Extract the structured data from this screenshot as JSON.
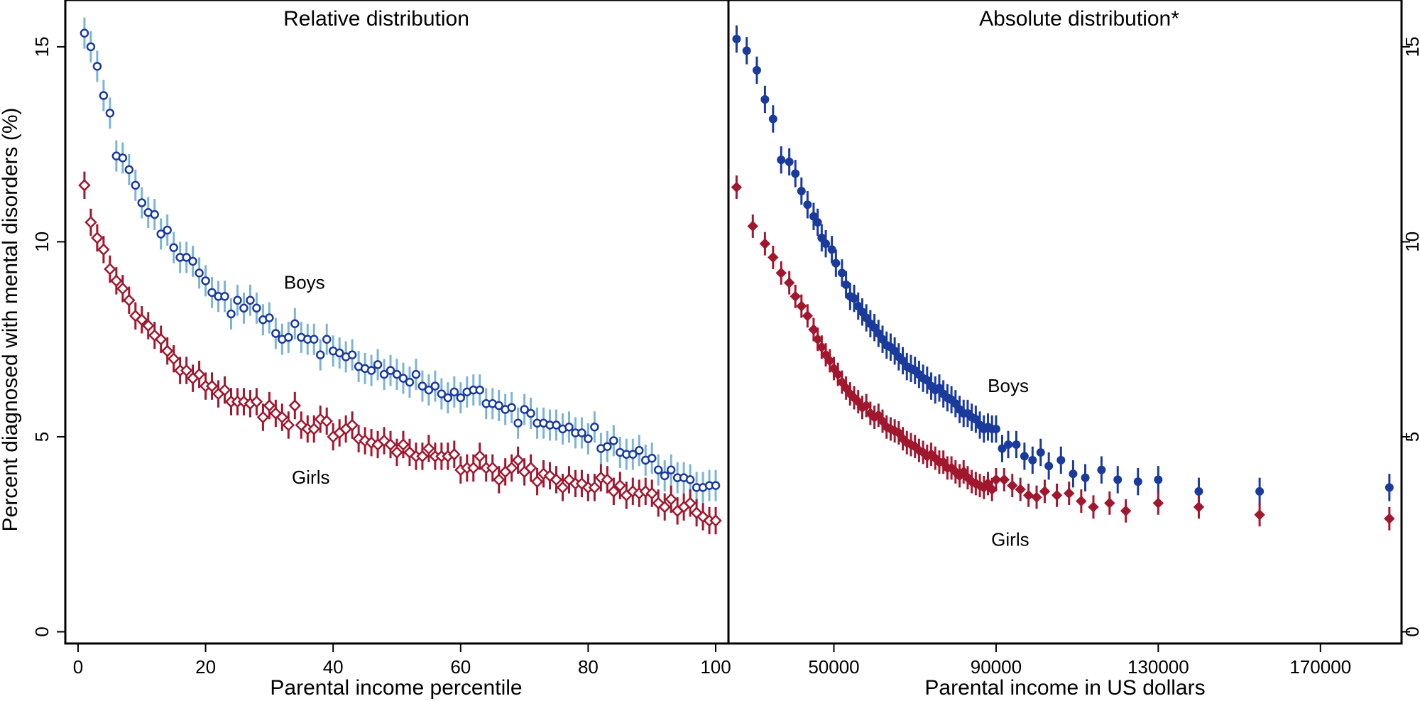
{
  "chart_data": [
    {
      "type": "scatter",
      "title": "Relative distribution",
      "xlabel": "Parental income percentile",
      "ylabel": "Percent diagnosed with mental disorders (%)",
      "xlim": [
        -2,
        102
      ],
      "ylim": [
        -0.3,
        16.2
      ],
      "xticks": [
        0,
        20,
        40,
        60,
        80,
        100
      ],
      "xtick_labels": [
        "0",
        "20",
        "40",
        "60",
        "80",
        "100"
      ],
      "yticks": [
        0,
        5,
        10,
        15
      ],
      "ytick_labels": [
        "0",
        "5",
        "10",
        "15"
      ],
      "grid": false,
      "legend": "none",
      "annotations": [
        {
          "text": "Boys",
          "x": 35.5,
          "y": 8.8
        },
        {
          "text": "Girls",
          "x": 36.5,
          "y": 3.8
        }
      ],
      "series": [
        {
          "name": "Boys",
          "marker": "circle-hollow",
          "color": "#1a3a9c",
          "errorbar_color": "#7bb4d6",
          "ci_halfwidth": 0.4,
          "x": [
            1,
            2,
            3,
            4,
            5,
            6,
            7,
            8,
            9,
            10,
            11,
            12,
            13,
            14,
            15,
            16,
            17,
            18,
            19,
            20,
            21,
            22,
            23,
            24,
            25,
            26,
            27,
            28,
            29,
            30,
            31,
            32,
            33,
            34,
            35,
            36,
            37,
            38,
            39,
            40,
            41,
            42,
            43,
            44,
            45,
            46,
            47,
            48,
            49,
            50,
            51,
            52,
            53,
            54,
            55,
            56,
            57,
            58,
            59,
            60,
            61,
            62,
            63,
            64,
            65,
            66,
            67,
            68,
            69,
            70,
            71,
            72,
            73,
            74,
            75,
            76,
            77,
            78,
            79,
            80,
            81,
            82,
            83,
            84,
            85,
            86,
            87,
            88,
            89,
            90,
            91,
            92,
            93,
            94,
            95,
            96,
            97,
            98,
            99,
            100
          ],
          "y": [
            15.35,
            15.0,
            14.5,
            13.75,
            13.3,
            12.2,
            12.15,
            11.85,
            11.45,
            11.0,
            10.75,
            10.7,
            10.2,
            10.3,
            9.85,
            9.6,
            9.6,
            9.5,
            9.2,
            9.0,
            8.7,
            8.6,
            8.6,
            8.15,
            8.5,
            8.3,
            8.5,
            8.3,
            8.0,
            8.05,
            7.65,
            7.5,
            7.55,
            7.9,
            7.55,
            7.5,
            7.5,
            7.1,
            7.5,
            7.2,
            7.15,
            7.05,
            7.1,
            6.8,
            6.75,
            6.7,
            6.85,
            6.6,
            6.7,
            6.6,
            6.5,
            6.4,
            6.6,
            6.3,
            6.2,
            6.3,
            6.1,
            6.0,
            6.15,
            6.0,
            6.15,
            6.2,
            6.2,
            5.85,
            5.85,
            5.8,
            5.7,
            5.75,
            5.35,
            5.7,
            5.6,
            5.35,
            5.35,
            5.3,
            5.3,
            5.2,
            5.25,
            5.1,
            5.1,
            4.95,
            5.25,
            4.7,
            4.75,
            4.9,
            4.6,
            4.55,
            4.55,
            4.65,
            4.4,
            4.45,
            4.15,
            4.0,
            4.15,
            3.95,
            3.95,
            3.9,
            3.7,
            3.7,
            3.75,
            3.75
          ]
        },
        {
          "name": "Girls",
          "marker": "diamond-hollow",
          "color": "#a0172e",
          "errorbar_color": "#a0172e",
          "ci_halfwidth": 0.35,
          "x": [
            1,
            2,
            3,
            4,
            5,
            6,
            7,
            8,
            9,
            10,
            11,
            12,
            13,
            14,
            15,
            16,
            17,
            18,
            19,
            20,
            21,
            22,
            23,
            24,
            25,
            26,
            27,
            28,
            29,
            30,
            31,
            32,
            33,
            34,
            35,
            36,
            37,
            38,
            39,
            40,
            41,
            42,
            43,
            44,
            45,
            46,
            47,
            48,
            49,
            50,
            51,
            52,
            53,
            54,
            55,
            56,
            57,
            58,
            59,
            60,
            61,
            62,
            63,
            64,
            65,
            66,
            67,
            68,
            69,
            70,
            71,
            72,
            73,
            74,
            75,
            76,
            77,
            78,
            79,
            80,
            81,
            82,
            83,
            84,
            85,
            86,
            87,
            88,
            89,
            90,
            91,
            92,
            93,
            94,
            95,
            96,
            97,
            98,
            99,
            100
          ],
          "y": [
            11.45,
            10.5,
            10.1,
            9.8,
            9.3,
            9.0,
            8.8,
            8.5,
            8.1,
            8.0,
            7.85,
            7.6,
            7.5,
            7.2,
            7.0,
            6.7,
            6.7,
            6.5,
            6.6,
            6.3,
            6.3,
            6.1,
            6.2,
            5.9,
            5.9,
            5.9,
            5.85,
            5.9,
            5.5,
            5.8,
            5.6,
            5.5,
            5.3,
            5.8,
            5.3,
            5.2,
            5.2,
            5.45,
            5.4,
            5.0,
            5.1,
            5.2,
            5.3,
            4.95,
            4.9,
            4.85,
            4.8,
            4.9,
            4.8,
            4.6,
            4.8,
            4.6,
            4.5,
            4.5,
            4.7,
            4.5,
            4.5,
            4.5,
            4.55,
            4.15,
            4.2,
            4.2,
            4.5,
            4.2,
            4.2,
            3.9,
            4.1,
            4.2,
            4.4,
            4.1,
            4.2,
            3.85,
            4.05,
            4.0,
            3.9,
            3.7,
            3.9,
            3.8,
            3.8,
            3.7,
            3.7,
            3.95,
            3.9,
            3.6,
            3.75,
            3.5,
            3.6,
            3.55,
            3.6,
            3.55,
            3.3,
            3.2,
            3.4,
            3.1,
            3.2,
            3.3,
            3.05,
            2.95,
            2.85,
            2.85
          ]
        }
      ]
    },
    {
      "type": "scatter",
      "title": "Absolute distribution*",
      "xlabel": "Parental income in US dollars",
      "ylabel": "",
      "xlim": [
        24000,
        190000
      ],
      "ylim": [
        -0.3,
        16.2
      ],
      "xticks": [
        50000,
        90000,
        130000,
        170000
      ],
      "xtick_labels": [
        "50000",
        "90000",
        "130000",
        "170000"
      ],
      "yticks": [
        0,
        5,
        10,
        15
      ],
      "ytick_labels": [
        "0",
        "5",
        "10",
        "15"
      ],
      "y_axis_side": "right",
      "grid": false,
      "legend": "none",
      "annotations": [
        {
          "text": "Boys",
          "x": 93000,
          "y": 6.15
        },
        {
          "text": "Girls",
          "x": 93500,
          "y": 2.2
        }
      ],
      "series": [
        {
          "name": "Boys",
          "marker": "circle-filled",
          "color": "#1a3a9c",
          "errorbar_color": "#1a3a9c",
          "ci_halfwidth": 0.35,
          "x": [
            26000,
            28500,
            31000,
            33000,
            35000,
            37000,
            39000,
            40500,
            42000,
            43500,
            45000,
            46000,
            47000,
            48000,
            49500,
            50500,
            52000,
            53000,
            54000,
            55000,
            56000,
            57000,
            58000,
            59000,
            60000,
            61000,
            62000,
            63000,
            64000,
            65000,
            66000,
            67000,
            68000,
            69000,
            70000,
            71000,
            72000,
            73000,
            74000,
            75000,
            76000,
            77000,
            78000,
            79000,
            80000,
            81000,
            82000,
            83000,
            84000,
            85000,
            86000,
            87000,
            88000,
            89000,
            90000,
            91500,
            93000,
            95000,
            97000,
            99000,
            101000,
            103000,
            106000,
            109000,
            112000,
            116000,
            120000,
            125000,
            130000,
            140000,
            155000,
            187000
          ],
          "y": [
            15.2,
            14.9,
            14.4,
            13.65,
            13.15,
            12.1,
            12.05,
            11.75,
            11.3,
            10.95,
            10.65,
            10.5,
            10.1,
            9.95,
            9.8,
            9.45,
            9.2,
            8.9,
            8.6,
            8.55,
            8.35,
            8.2,
            8.05,
            7.9,
            7.8,
            7.65,
            7.5,
            7.35,
            7.3,
            7.2,
            7.05,
            6.95,
            6.8,
            6.75,
            6.7,
            6.6,
            6.5,
            6.45,
            6.3,
            6.2,
            6.25,
            6.1,
            6.0,
            5.95,
            5.85,
            5.7,
            5.6,
            5.6,
            5.5,
            5.45,
            5.3,
            5.2,
            5.25,
            5.2,
            5.2,
            4.7,
            4.8,
            4.8,
            4.5,
            4.4,
            4.6,
            4.25,
            4.4,
            4.05,
            3.95,
            4.15,
            3.9,
            3.85,
            3.9,
            3.6,
            3.6,
            3.7
          ]
        },
        {
          "name": "Girls",
          "marker": "diamond-filled",
          "color": "#a0172e",
          "errorbar_color": "#a0172e",
          "ci_halfwidth": 0.3,
          "x": [
            26000,
            30000,
            33000,
            35000,
            37000,
            39000,
            40500,
            42000,
            43500,
            45000,
            46000,
            47000,
            48000,
            49000,
            50000,
            51000,
            52000,
            53000,
            54000,
            55000,
            56000,
            57000,
            58000,
            59000,
            60000,
            61000,
            62000,
            63000,
            64000,
            65000,
            66000,
            67000,
            68000,
            69000,
            70000,
            71000,
            72000,
            73000,
            74000,
            75000,
            76000,
            77000,
            78000,
            79000,
            80000,
            81000,
            82000,
            83000,
            84000,
            85000,
            86000,
            87000,
            88000,
            89000,
            90000,
            92000,
            94000,
            96000,
            98000,
            100000,
            102000,
            105000,
            108000,
            111000,
            114000,
            118000,
            122000,
            130000,
            140000,
            155000,
            187000
          ],
          "y": [
            11.4,
            10.4,
            9.95,
            9.6,
            9.2,
            8.95,
            8.6,
            8.35,
            8.1,
            7.75,
            7.5,
            7.3,
            7.1,
            6.95,
            6.75,
            6.6,
            6.4,
            6.25,
            6.1,
            6.0,
            5.9,
            5.75,
            5.8,
            5.6,
            5.5,
            5.55,
            5.4,
            5.25,
            5.2,
            5.15,
            5.1,
            4.95,
            4.85,
            4.8,
            4.75,
            4.65,
            4.6,
            4.5,
            4.55,
            4.45,
            4.35,
            4.35,
            4.2,
            4.2,
            4.1,
            4.0,
            4.1,
            3.95,
            3.85,
            3.8,
            3.75,
            3.7,
            3.8,
            3.65,
            3.9,
            3.9,
            3.75,
            3.65,
            3.5,
            3.45,
            3.6,
            3.5,
            3.55,
            3.35,
            3.2,
            3.3,
            3.1,
            3.3,
            3.2,
            3.0,
            2.9
          ]
        }
      ]
    }
  ]
}
